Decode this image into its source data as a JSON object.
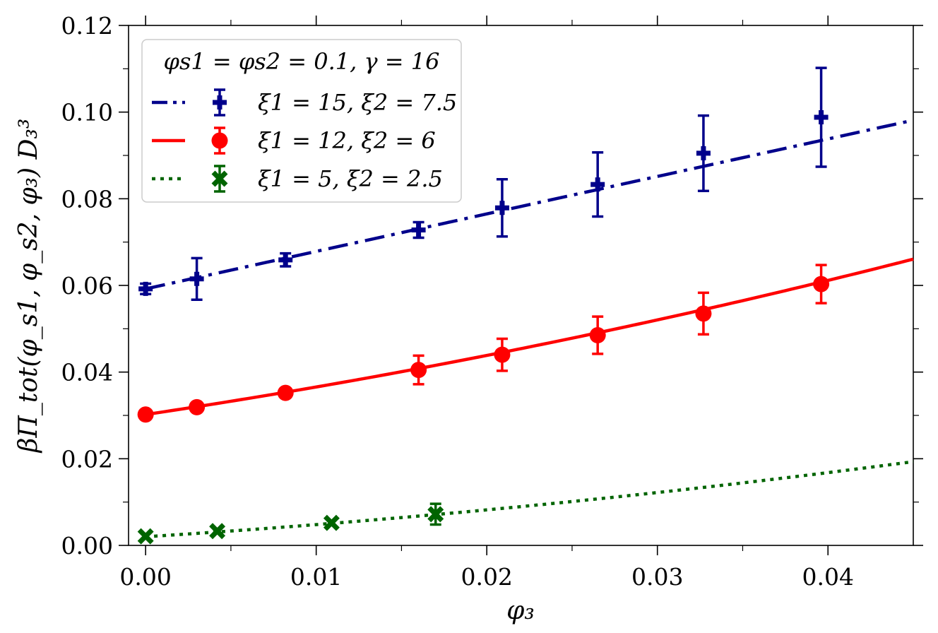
{
  "chart_data": {
    "type": "line",
    "title": "",
    "xlabel": "φ₃",
    "ylabel": "βΠ_tot(φ_s1, φ_s2, φ₃) D₃³",
    "xlim": [
      -0.001,
      0.045
    ],
    "ylim": [
      0.0,
      0.12
    ],
    "x_ticks": [
      0.0,
      0.01,
      0.02,
      0.03,
      0.04
    ],
    "x_tick_labels": [
      "0.00",
      "0.01",
      "0.02",
      "0.03",
      "0.04"
    ],
    "x_minor_ticks": [
      0.005,
      0.015,
      0.025,
      0.035
    ],
    "y_ticks": [
      0.0,
      0.02,
      0.04,
      0.06,
      0.08,
      0.1,
      0.12
    ],
    "y_tick_labels": [
      "0.00",
      "0.02",
      "0.04",
      "0.06",
      "0.08",
      "0.10",
      "0.12"
    ],
    "y_minor_ticks": [
      0.01,
      0.03,
      0.05,
      0.07,
      0.09,
      0.11
    ],
    "legend_title": "φs1 = φs2 = 0.1, γ = 16",
    "legend_position": "top-left",
    "grid": false,
    "series": [
      {
        "name": "ξ1 = 15, ξ2 = 7.5",
        "color": "#00008b",
        "line_style": "dashdot",
        "marker": "plus",
        "fit_line": {
          "x": [
            0.0,
            0.045
          ],
          "a": 0.0592,
          "b": 0.865,
          "c": 0.0
        },
        "points": [
          {
            "x": 0.0,
            "y": 0.0592,
            "err": 0.0012
          },
          {
            "x": 0.003,
            "y": 0.0615,
            "err": 0.0048
          },
          {
            "x": 0.0082,
            "y": 0.0659,
            "err": 0.0015
          },
          {
            "x": 0.016,
            "y": 0.0728,
            "err": 0.0018
          },
          {
            "x": 0.0209,
            "y": 0.0779,
            "err": 0.0066
          },
          {
            "x": 0.0265,
            "y": 0.0833,
            "err": 0.0074
          },
          {
            "x": 0.0327,
            "y": 0.0905,
            "err": 0.0087
          },
          {
            "x": 0.0396,
            "y": 0.0988,
            "err": 0.0114
          }
        ]
      },
      {
        "name": "ξ1 = 12, ξ2 = 6",
        "color": "#ff0000",
        "line_style": "solid",
        "marker": "circle",
        "fit_line": {
          "x": [
            0.0,
            0.045
          ],
          "a": 0.0302,
          "b": 0.59,
          "c": 4.6
        },
        "points": [
          {
            "x": 0.0,
            "y": 0.0302,
            "err": 0.0
          },
          {
            "x": 0.003,
            "y": 0.0319,
            "err": 0.0
          },
          {
            "x": 0.0082,
            "y": 0.0352,
            "err": 0.0
          },
          {
            "x": 0.016,
            "y": 0.0405,
            "err": 0.0033
          },
          {
            "x": 0.0209,
            "y": 0.044,
            "err": 0.0037
          },
          {
            "x": 0.0265,
            "y": 0.0485,
            "err": 0.0043
          },
          {
            "x": 0.0327,
            "y": 0.0535,
            "err": 0.0048
          },
          {
            "x": 0.0396,
            "y": 0.0603,
            "err": 0.0044
          }
        ]
      },
      {
        "name": "ξ1 = 5, ξ2 = 2.5",
        "color": "#006400",
        "line_style": "dotted",
        "marker": "x",
        "fit_line": {
          "x": [
            0.0,
            0.045
          ],
          "a": 0.002,
          "b": 0.25,
          "c": 3.0
        },
        "points": [
          {
            "x": 0.0,
            "y": 0.0021,
            "err": 0.0
          },
          {
            "x": 0.0042,
            "y": 0.0033,
            "err": 0.0
          },
          {
            "x": 0.0109,
            "y": 0.0052,
            "err": 0.0
          },
          {
            "x": 0.017,
            "y": 0.0072,
            "err": 0.0024
          }
        ]
      }
    ]
  }
}
